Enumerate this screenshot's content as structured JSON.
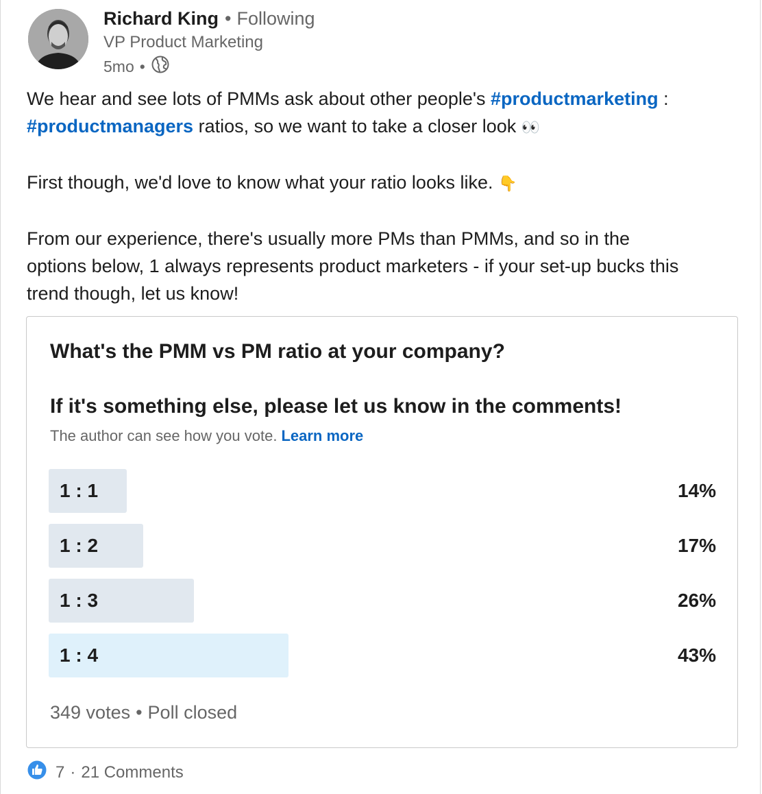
{
  "author": {
    "name": "Richard King",
    "separator": "•",
    "follow_status": "Following",
    "title": "VP Product Marketing",
    "time": "5mo",
    "visibility_icon": "globe-icon"
  },
  "post": {
    "line1_a": "We hear and see lots of PMMs ask about other people's ",
    "line1_hashtag": "#productmarketing",
    "line1_b": " :",
    "line2_hashtag": "#productmanagers",
    "line2_b": " ratios, so we want to take a closer look ",
    "line2_emoji": "👀",
    "line3": "First though, we'd love to know what your ratio looks like. ",
    "line3_emoji": "👇",
    "line4": "From our experience, there's usually more PMs than PMMs, and so in the",
    "line5": "options below, 1 always represents product marketers - if your set-up bucks this",
    "line6": "trend though, let us know!"
  },
  "poll": {
    "question": "What's the PMM vs PM ratio at your company?",
    "subquestion": "If it's something else, please let us know in the comments!",
    "notice": "The author can see how you vote.",
    "learn_more": "Learn more",
    "options": [
      {
        "label": "1 : 1",
        "percent_text": "14%",
        "percent": 14
      },
      {
        "label": "1 : 2",
        "percent_text": "17%",
        "percent": 17
      },
      {
        "label": "1 : 3",
        "percent_text": "26%",
        "percent": 26
      },
      {
        "label": "1 : 4",
        "percent_text": "43%",
        "percent": 43
      }
    ],
    "votes": "349 votes",
    "status": "Poll closed"
  },
  "social": {
    "reaction_icon": "like-icon",
    "reactions": "7",
    "comments": "21 Comments"
  },
  "colors": {
    "link": "#0a66c2",
    "bar": "#e1e8ef",
    "bar_leading": "#dff1fb",
    "muted_text": "#666666"
  }
}
